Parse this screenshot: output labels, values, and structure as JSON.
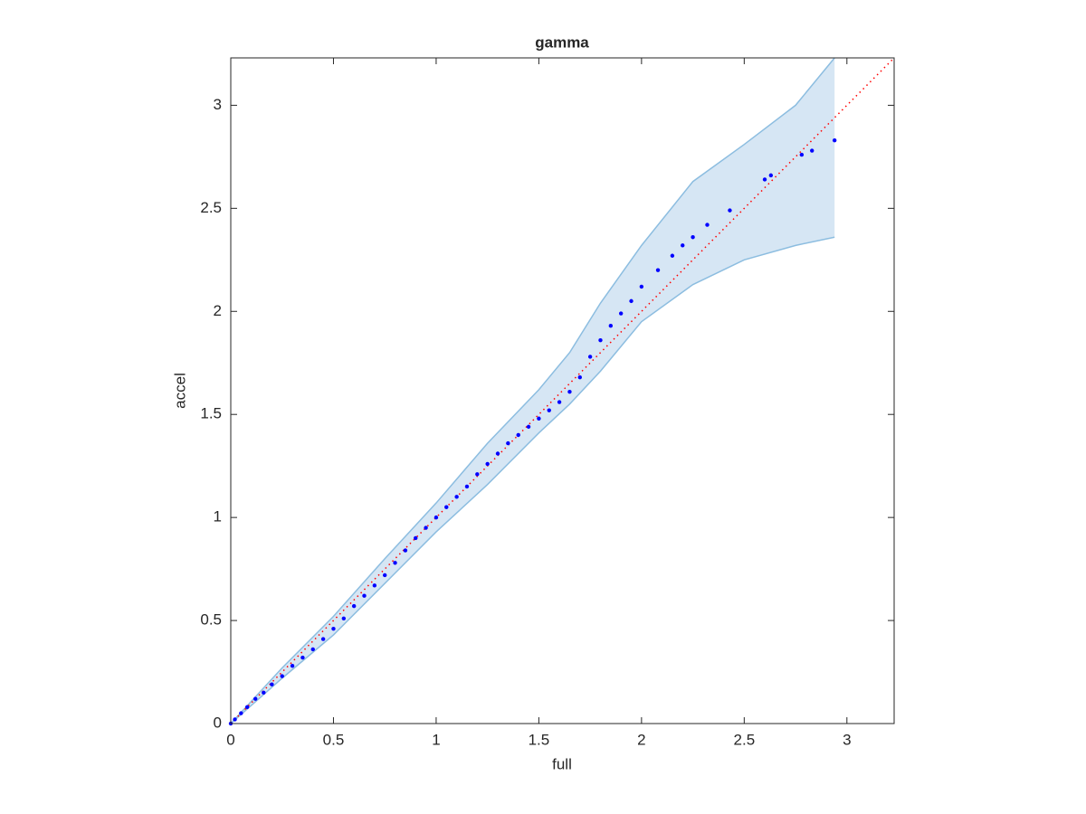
{
  "chart_data": {
    "type": "scatter",
    "title": "gamma",
    "x_label": "full",
    "y_label": "accel",
    "x": [
      0,
      0.02,
      0.05,
      0.08,
      0.12,
      0.16,
      0.2,
      0.25,
      0.3,
      0.35,
      0.4,
      0.45,
      0.5,
      0.55,
      0.6,
      0.65,
      0.7,
      0.75,
      0.8,
      0.85,
      0.9,
      0.95,
      1.0,
      1.05,
      1.1,
      1.15,
      1.2,
      1.25,
      1.3,
      1.35,
      1.4,
      1.45,
      1.5,
      1.55,
      1.6,
      1.65,
      1.7,
      1.75,
      1.8,
      1.85,
      1.9,
      1.95,
      2.0,
      2.08,
      2.15,
      2.2,
      2.25,
      2.32,
      2.43,
      2.6,
      2.63,
      2.78,
      2.83,
      2.94
    ],
    "values": [
      0,
      0.02,
      0.05,
      0.08,
      0.12,
      0.15,
      0.19,
      0.23,
      0.28,
      0.32,
      0.36,
      0.41,
      0.46,
      0.51,
      0.57,
      0.62,
      0.67,
      0.72,
      0.78,
      0.84,
      0.9,
      0.95,
      1.0,
      1.05,
      1.1,
      1.15,
      1.21,
      1.26,
      1.31,
      1.36,
      1.4,
      1.44,
      1.48,
      1.52,
      1.56,
      1.61,
      1.68,
      1.78,
      1.86,
      1.93,
      1.99,
      2.05,
      2.12,
      2.2,
      2.27,
      2.32,
      2.36,
      2.42,
      2.49,
      2.64,
      2.66,
      2.76,
      2.78,
      2.83
    ],
    "color": "#0000ff",
    "band": {
      "x": [
        0,
        0.25,
        0.5,
        0.75,
        1.0,
        1.25,
        1.5,
        1.65,
        1.8,
        2.0,
        2.25,
        2.5,
        2.75,
        2.94
      ],
      "upper": [
        0,
        0.27,
        0.52,
        0.8,
        1.07,
        1.36,
        1.62,
        1.8,
        2.04,
        2.32,
        2.63,
        2.81,
        3.0,
        3.23
      ],
      "lower": [
        0,
        0.22,
        0.43,
        0.68,
        0.93,
        1.16,
        1.41,
        1.55,
        1.71,
        1.95,
        2.13,
        2.25,
        2.32,
        2.36
      ],
      "color": "#d6e6f4",
      "edge_color": "#8cbde0"
    },
    "reference_line": {
      "color": "#ff0000",
      "style": "dotted"
    },
    "xlim": [
      0,
      3.23
    ],
    "ylim": [
      0,
      3.23
    ],
    "xticks": [
      0,
      0.5,
      1,
      1.5,
      2,
      2.5,
      3
    ],
    "yticks": [
      0,
      0.5,
      1,
      1.5,
      2,
      2.5,
      3
    ]
  }
}
